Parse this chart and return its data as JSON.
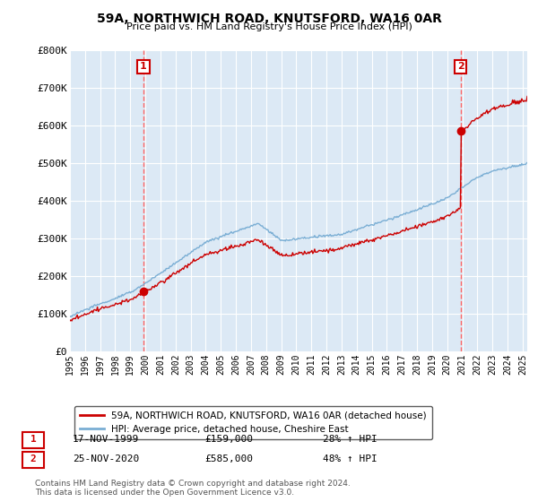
{
  "title": "59A, NORTHWICH ROAD, KNUTSFORD, WA16 0AR",
  "subtitle": "Price paid vs. HM Land Registry's House Price Index (HPI)",
  "hpi_label": "HPI: Average price, detached house, Cheshire East",
  "property_label": "59A, NORTHWICH ROAD, KNUTSFORD, WA16 0AR (detached house)",
  "transaction1_date": "17-NOV-1999",
  "transaction1_price": "£159,000",
  "transaction1_hpi": "28% ↑ HPI",
  "transaction2_date": "25-NOV-2020",
  "transaction2_price": "£585,000",
  "transaction2_hpi": "48% ↑ HPI",
  "footnote": "Contains HM Land Registry data © Crown copyright and database right 2024.\nThis data is licensed under the Open Government Licence v3.0.",
  "ylim": [
    0,
    800000
  ],
  "yticks": [
    0,
    100000,
    200000,
    300000,
    400000,
    500000,
    600000,
    700000,
    800000
  ],
  "ytick_labels": [
    "£0",
    "£100K",
    "£200K",
    "£300K",
    "£400K",
    "£500K",
    "£600K",
    "£700K",
    "£800K"
  ],
  "background_color": "#ffffff",
  "plot_bg_color": "#dce9f5",
  "grid_color": "#ffffff",
  "hpi_color": "#7aaed4",
  "property_color": "#cc0000",
  "marker_color": "#cc0000",
  "vline_color": "#ff6666",
  "t1_x": 1999.875,
  "t1_y": 159000,
  "t2_x": 2020.875,
  "t2_y": 585000,
  "xmin": 1995,
  "xmax": 2025.3
}
